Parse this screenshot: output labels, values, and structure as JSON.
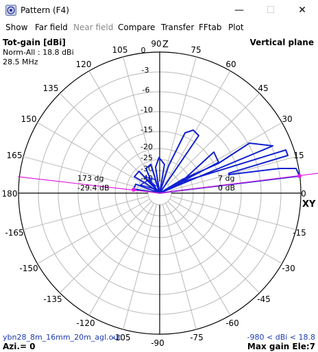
{
  "window": {
    "title": "Pattern    (F4)",
    "icon": "pattern-app-icon",
    "minimize_icon": "—",
    "maximize_icon": "☐",
    "close_icon": "✕"
  },
  "menu": [
    "Show",
    "Far field",
    "Near field",
    "Compare",
    "Transfer",
    "FFtab",
    "Plot"
  ],
  "menu_disabled": [
    "Near field"
  ],
  "plot": {
    "header_left": [
      "Tot-gain [dBi]",
      "Norm-All : 18.8 dBi",
      "28.5 MHz"
    ],
    "header_right": "Vertical plane",
    "footer_left": [
      "ybn28_8m_16mm_20m_agl.out",
      "Azi.= 0"
    ],
    "footer_right": [
      "-980 < dBi < 18.8",
      "Max gain Ele:7"
    ],
    "axis_z": "Z",
    "axis_xy": "XY",
    "ring_labels": [
      "0",
      "-3",
      "-6",
      "-10",
      "-15",
      "-20",
      "-25",
      "-30",
      "-40"
    ],
    "angle_labels": [
      "0",
      "15",
      "30",
      "45",
      "60",
      "75",
      "90",
      "105",
      "120",
      "135",
      "150",
      "165",
      "180",
      "-165",
      "-150",
      "-135",
      "-120",
      "-105",
      "-90",
      "-75",
      "-60",
      "-45",
      "-30",
      "-15"
    ],
    "marker_main_angle": "7 dg",
    "marker_main_gain": "0 dB",
    "marker_back_angle": "173 dg",
    "marker_back_gain": "-29.4 dB",
    "colors": {
      "pattern": "#1020d0",
      "marker": "#e020e0",
      "grid": "#b8b8b8"
    }
  },
  "chart_data": {
    "type": "polar",
    "plane": "vertical",
    "radial_unit": "dB",
    "ring_values": [
      0,
      -3,
      -6,
      -10,
      -15,
      -20,
      -25,
      -30,
      -40
    ],
    "lobes": [
      {
        "elevation_deg": 7,
        "gain_db": 0
      },
      {
        "elevation_deg": 22,
        "gain_db": -3
      },
      {
        "elevation_deg": 38,
        "gain_db": -9
      },
      {
        "elevation_deg": 64,
        "gain_db": -14
      },
      {
        "elevation_deg": 105,
        "gain_db": -22
      },
      {
        "elevation_deg": 135,
        "gain_db": -27
      },
      {
        "elevation_deg": 173,
        "gain_db": -29.4
      }
    ]
  }
}
